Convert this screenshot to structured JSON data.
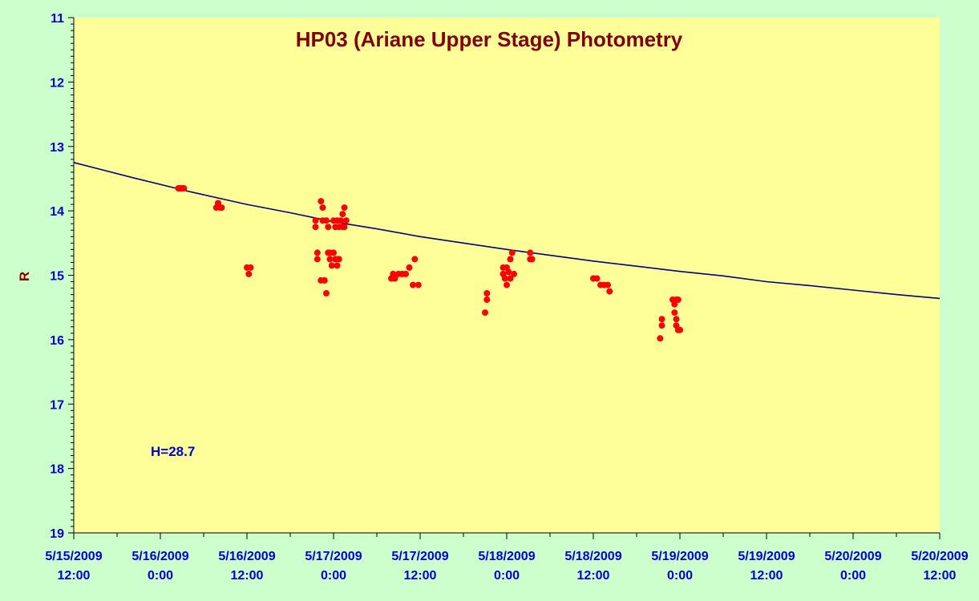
{
  "chart_data": {
    "type": "scatter",
    "title": "HP03 (Ariane Upper Stage) Photometry",
    "ylabel": "R",
    "xlabel": "",
    "annotation": "H=28.7",
    "y_reversed": true,
    "ylim": [
      11,
      19
    ],
    "xlim": [
      "5/15/2009 12:00",
      "5/20/2009 12:00"
    ],
    "y_ticks": [
      "11",
      "12",
      "13",
      "14",
      "15",
      "16",
      "17",
      "18",
      "19"
    ],
    "x_ticks": [
      {
        "line1": "5/15/2009",
        "line2": "12:00"
      },
      {
        "line1": "5/16/2009",
        "line2": "0:00"
      },
      {
        "line1": "5/16/2009",
        "line2": "12:00"
      },
      {
        "line1": "5/17/2009",
        "line2": "0:00"
      },
      {
        "line1": "5/17/2009",
        "line2": "12:00"
      },
      {
        "line1": "5/18/2009",
        "line2": "0:00"
      },
      {
        "line1": "5/18/2009",
        "line2": "12:00"
      },
      {
        "line1": "5/19/2009",
        "line2": "0:00"
      },
      {
        "line1": "5/19/2009",
        "line2": "12:00"
      },
      {
        "line1": "5/20/2009",
        "line2": "0:00"
      },
      {
        "line1": "5/20/2009",
        "line2": "12:00"
      }
    ],
    "series": [
      {
        "kind": "points",
        "color": "#ff0000",
        "points": [
          [
            "5/16/2009 2:30",
            13.65
          ],
          [
            "5/16/2009 2:45",
            13.65
          ],
          [
            "5/16/2009 3:00",
            13.65
          ],
          [
            "5/16/2009 3:15",
            13.65
          ],
          [
            "5/16/2009 7:45",
            13.95
          ],
          [
            "5/16/2009 8:00",
            13.88
          ],
          [
            "5/16/2009 8:15",
            13.95
          ],
          [
            "5/16/2009 8:30",
            13.95
          ],
          [
            "5/16/2009 12:00",
            14.88
          ],
          [
            "5/16/2009 12:15",
            14.98
          ],
          [
            "5/16/2009 12:30",
            14.88
          ],
          [
            "5/16/2009 21:30",
            14.15
          ],
          [
            "5/16/2009 21:30",
            14.25
          ],
          [
            "5/16/2009 21:45",
            14.65
          ],
          [
            "5/16/2009 21:45",
            14.75
          ],
          [
            "5/16/2009 22:15",
            13.85
          ],
          [
            "5/16/2009 22:30",
            13.95
          ],
          [
            "5/16/2009 22:15",
            15.08
          ],
          [
            "5/16/2009 22:45",
            15.08
          ],
          [
            "5/16/2009 22:30",
            14.15
          ],
          [
            "5/16/2009 23:00",
            14.15
          ],
          [
            "5/16/2009 23:15",
            14.25
          ],
          [
            "5/16/2009 23:00",
            15.28
          ],
          [
            "5/16/2009 23:15",
            14.65
          ],
          [
            "5/16/2009 23:30",
            14.75
          ],
          [
            "5/16/2009 23:45",
            14.85
          ],
          [
            "5/16/2009 23:30",
            14.65
          ],
          [
            "5/17/2009 0:00",
            14.15
          ],
          [
            "5/17/2009 0:15",
            14.25
          ],
          [
            "5/17/2009 0:00",
            14.65
          ],
          [
            "5/17/2009 0:15",
            14.75
          ],
          [
            "5/17/2009 0:30",
            14.15
          ],
          [
            "5/17/2009 0:45",
            14.25
          ],
          [
            "5/17/2009 0:30",
            14.85
          ],
          [
            "5/17/2009 0:45",
            14.75
          ],
          [
            "5/17/2009 1:00",
            14.15
          ],
          [
            "5/17/2009 1:15",
            14.25
          ],
          [
            "5/17/2009 1:15",
            14.05
          ],
          [
            "5/17/2009 1:30",
            13.95
          ],
          [
            "5/17/2009 1:30",
            14.25
          ],
          [
            "5/17/2009 1:45",
            14.15
          ],
          [
            "5/17/2009 8:00",
            15.05
          ],
          [
            "5/17/2009 8:15",
            14.98
          ],
          [
            "5/17/2009 8:30",
            15.05
          ],
          [
            "5/17/2009 9:00",
            14.98
          ],
          [
            "5/17/2009 9:30",
            14.98
          ],
          [
            "5/17/2009 10:00",
            14.98
          ],
          [
            "5/17/2009 10:30",
            14.88
          ],
          [
            "5/17/2009 11:00",
            15.15
          ],
          [
            "5/17/2009 11:15",
            14.75
          ],
          [
            "5/17/2009 11:45",
            15.15
          ],
          [
            "5/17/2009 21:00",
            15.58
          ],
          [
            "5/17/2009 21:15",
            15.38
          ],
          [
            "5/17/2009 21:15",
            15.28
          ],
          [
            "5/17/2009 23:30",
            14.88
          ],
          [
            "5/17/2009 23:30",
            14.98
          ],
          [
            "5/17/2009 23:45",
            15.05
          ],
          [
            "5/18/2009 0:00",
            14.88
          ],
          [
            "5/18/2009 0:00",
            15.15
          ],
          [
            "5/18/2009 0:15",
            14.95
          ],
          [
            "5/18/2009 0:30",
            15.05
          ],
          [
            "5/18/2009 0:30",
            14.75
          ],
          [
            "5/18/2009 0:45",
            14.65
          ],
          [
            "5/18/2009 1:00",
            14.98
          ],
          [
            "5/18/2009 3:15",
            14.75
          ],
          [
            "5/18/2009 3:15",
            14.65
          ],
          [
            "5/18/2009 3:30",
            14.75
          ],
          [
            "5/18/2009 12:00",
            15.05
          ],
          [
            "5/18/2009 12:30",
            15.05
          ],
          [
            "5/18/2009 13:00",
            15.15
          ],
          [
            "5/18/2009 13:30",
            15.15
          ],
          [
            "5/18/2009 14:00",
            15.15
          ],
          [
            "5/18/2009 14:15",
            15.25
          ],
          [
            "5/18/2009 21:30",
            15.68
          ],
          [
            "5/18/2009 21:30",
            15.78
          ],
          [
            "5/18/2009 21:15",
            15.98
          ],
          [
            "5/18/2009 23:00",
            15.38
          ],
          [
            "5/18/2009 23:15",
            15.45
          ],
          [
            "5/18/2009 23:15",
            15.58
          ],
          [
            "5/18/2009 23:30",
            15.38
          ],
          [
            "5/18/2009 23:30",
            15.68
          ],
          [
            "5/18/2009 23:45",
            15.38
          ],
          [
            "5/18/2009 23:30",
            15.78
          ],
          [
            "5/18/2009 23:45",
            15.85
          ],
          [
            "5/19/2009 0:00",
            15.85
          ]
        ]
      },
      {
        "kind": "fit",
        "color": "#000080",
        "points": [
          [
            "5/15/2009 12:00",
            13.25
          ],
          [
            "5/15/2009 20:00",
            13.48
          ],
          [
            "5/16/2009 4:00",
            13.7
          ],
          [
            "5/16/2009 12:00",
            13.9
          ],
          [
            "5/16/2009 18:00",
            14.03
          ],
          [
            "5/17/2009 0:00",
            14.17
          ],
          [
            "5/17/2009 6:00",
            14.28
          ],
          [
            "5/17/2009 12:00",
            14.4
          ],
          [
            "5/17/2009 18:00",
            14.5
          ],
          [
            "5/18/2009 0:00",
            14.6
          ],
          [
            "5/18/2009 6:00",
            14.69
          ],
          [
            "5/18/2009 12:00",
            14.78
          ],
          [
            "5/18/2009 18:00",
            14.86
          ],
          [
            "5/19/2009 0:00",
            14.94
          ],
          [
            "5/19/2009 6:00",
            15.01
          ],
          [
            "5/19/2009 12:00",
            15.1
          ],
          [
            "5/19/2009 18:00",
            15.16
          ],
          [
            "5/20/2009 0:00",
            15.23
          ],
          [
            "5/20/2009 6:00",
            15.3
          ],
          [
            "5/20/2009 12:00",
            15.36
          ]
        ]
      }
    ],
    "colors": {
      "background": "#ccffcc",
      "plot_area": "#ffff99",
      "axis": "#000000",
      "title": "#800000",
      "tick_text": "#0000cc"
    }
  }
}
